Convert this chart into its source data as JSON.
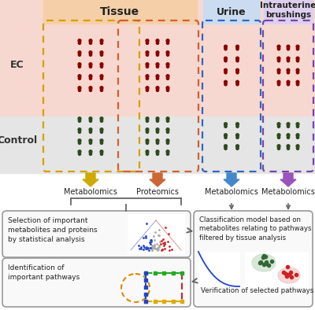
{
  "fig_width": 4.0,
  "fig_height": 3.94,
  "dpi": 100,
  "bg_color": "#ffffff",
  "title_tissue": "Tissue",
  "title_urine": "Urine",
  "title_intrauterine": "Intrauterine\nbrushings",
  "label_ec": "EC",
  "label_control": "Control",
  "label_metabolomics": "Metabolomics",
  "label_proteomics": "Proteomics",
  "ec_row_bg": "#f7d8d0",
  "control_row_bg": "#e5e5e5",
  "tissue_header_bg": "#f5cfa8",
  "urine_header_bg": "#ccdcf0",
  "intrauterine_header_bg": "#ddd0ee",
  "red_person_color": "#8b0000",
  "dark_green_person_color": "#2d4a1e",
  "tissue_box1_color": "#d4a000",
  "tissue_box2_color": "#d06030",
  "urine_box_color": "#3366bb",
  "intrauterine_box_color": "#7744aa",
  "arrow_tissue_metab_color": "#ccaa00",
  "arrow_tissue_prot_color": "#cc6633",
  "arrow_urine_color": "#4488cc",
  "arrow_intrauterine_color": "#9955bb",
  "box_edge_color": "#999999",
  "box_face_color": "#f9f9f9",
  "selection_box_text": "Selection of important\nmetabolites and proteins\nby statistical analysis",
  "pathway_box_text": "Identification of\nimportant pathways",
  "classification_box_text": "Classification model based on\nmetabolites relating to pathways\nfiltered by tissue analysis",
  "verification_text": "Verification of selected pathways"
}
